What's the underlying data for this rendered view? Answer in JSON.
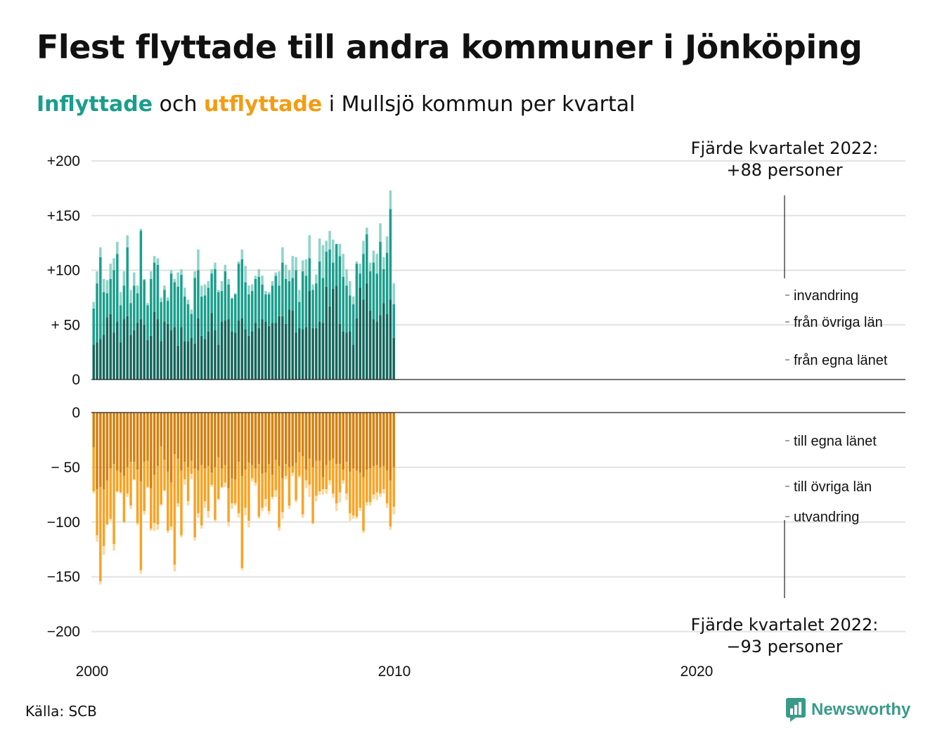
{
  "title": "Flest flyttade till andra kommuner i Jönköping",
  "subtitle": {
    "part1": "Inflyttade",
    "part2": " och ",
    "part3": "utflyttade",
    "part4": " i Mullsjö kommun per kvartal"
  },
  "source": "Källa: SCB",
  "brand": "Newsworthy",
  "colors": {
    "in_own": "#14665c",
    "in_other": "#1a9e8c",
    "in_immig": "#8fd3c9",
    "out_own": "#d4800f",
    "out_other": "#f8a324",
    "out_emig": "#fbd9a0",
    "grid": "#e2e2e2",
    "brand": "#3a9a8a"
  },
  "chart_data": {
    "type": "bar",
    "stacked": true,
    "x_start": "2000 K1",
    "x_ticks": [
      "2000",
      "2010",
      "2020"
    ],
    "top_panel": {
      "yticks": [
        "+200",
        "+150",
        "+100",
        "+ 50",
        "0"
      ],
      "ylim": [
        0,
        200
      ],
      "segment_labels": [
        "invandring",
        "från övriga län",
        "från egna länet"
      ],
      "annotation_line1": "Fjärde kvartalet 2022:",
      "annotation_line2": "+88 personer",
      "series": [
        {
          "name": "från egna länet",
          "values": [
            32,
            34,
            37,
            41,
            57,
            60,
            43,
            53,
            34,
            55,
            58,
            41,
            45,
            52,
            55,
            50,
            36,
            40,
            62,
            55,
            35,
            53,
            51,
            45,
            48,
            31,
            48,
            35,
            35,
            38,
            33,
            56,
            40,
            37,
            44,
            61,
            45,
            32,
            53,
            54,
            55,
            44,
            43,
            54,
            56,
            46,
            40,
            44,
            52,
            47,
            55,
            53,
            49,
            52,
            52,
            58,
            58,
            51,
            64,
            63,
            43,
            47,
            46,
            48,
            81,
            47,
            47,
            53,
            52,
            85,
            67,
            83,
            86,
            51,
            44,
            43,
            44,
            32,
            56,
            84,
            73,
            88,
            63,
            55,
            53,
            59,
            70,
            60,
            73,
            38
          ]
        },
        {
          "name": "från övriga län",
          "values": [
            33,
            54,
            75,
            39,
            22,
            32,
            57,
            62,
            34,
            31,
            63,
            29,
            41,
            27,
            81,
            41,
            32,
            52,
            45,
            50,
            36,
            29,
            21,
            52,
            41,
            54,
            48,
            41,
            34,
            22,
            60,
            44,
            36,
            40,
            40,
            36,
            56,
            48,
            28,
            45,
            32,
            30,
            35,
            52,
            54,
            43,
            38,
            37,
            40,
            47,
            32,
            25,
            29,
            34,
            43,
            28,
            49,
            41,
            26,
            30,
            57,
            24,
            53,
            47,
            30,
            35,
            41,
            55,
            41,
            32,
            52,
            24,
            38,
            62,
            50,
            43,
            33,
            37,
            50,
            13,
            42,
            45,
            36,
            52,
            44,
            67,
            31,
            56,
            83,
            31
          ]
        },
        {
          "name": "invandring",
          "values": [
            6,
            11,
            9,
            12,
            12,
            14,
            11,
            11,
            12,
            13,
            11,
            12,
            12,
            7,
            2,
            1,
            2,
            7,
            6,
            6,
            4,
            4,
            3,
            3,
            3,
            13,
            5,
            8,
            4,
            4,
            6,
            19,
            10,
            10,
            6,
            4,
            6,
            2,
            9,
            6,
            5,
            1,
            1,
            2,
            9,
            15,
            8,
            6,
            3,
            7,
            8,
            3,
            2,
            4,
            3,
            13,
            14,
            13,
            10,
            20,
            12,
            11,
            10,
            15,
            21,
            5,
            8,
            21,
            30,
            10,
            17,
            21,
            0,
            11,
            21,
            15,
            13,
            7,
            2,
            9,
            12,
            6,
            8,
            11,
            18,
            17,
            11,
            15,
            17,
            19
          ]
        }
      ]
    },
    "bottom_panel": {
      "yticks": [
        "0",
        "− 50",
        "−100",
        "−150",
        "−200"
      ],
      "ylim": [
        -200,
        0
      ],
      "segment_labels": [
        "till egna länet",
        "till övriga län",
        "utvandring"
      ],
      "annotation_line1": "Fjärde kvartalet 2022:",
      "annotation_line2": "−93 personer",
      "series": [
        {
          "name": "till egna länet",
          "values": [
            -32,
            -70,
            -68,
            -70,
            -62,
            -51,
            -47,
            -53,
            -55,
            -58,
            -50,
            -45,
            -45,
            -52,
            -63,
            -45,
            -44,
            -69,
            -57,
            -49,
            -31,
            -43,
            -54,
            -64,
            -38,
            -42,
            -53,
            -45,
            -50,
            -44,
            -51,
            -53,
            -48,
            -51,
            -49,
            -55,
            -50,
            -41,
            -51,
            -48,
            -69,
            -60,
            -61,
            -45,
            -58,
            -52,
            -46,
            -48,
            -51,
            -47,
            -56,
            -55,
            -47,
            -57,
            -43,
            -49,
            -60,
            -47,
            -50,
            -49,
            -46,
            -36,
            -40,
            -52,
            -42,
            -50,
            -44,
            -44,
            -59,
            -48,
            -44,
            -42,
            -47,
            -47,
            -52,
            -45,
            -54,
            -51,
            -53,
            -55,
            -59,
            -52,
            -51,
            -49,
            -48,
            -50,
            -49,
            -53,
            -62,
            -50
          ]
        },
        {
          "name": "till övriga län",
          "values": [
            -40,
            -42,
            -86,
            -52,
            -40,
            -46,
            -73,
            -19,
            -18,
            -42,
            -24,
            -40,
            -16,
            -49,
            -81,
            -45,
            -24,
            -37,
            -44,
            -53,
            -53,
            -28,
            -54,
            -40,
            -101,
            -41,
            -59,
            -16,
            -31,
            -12,
            -63,
            -39,
            -55,
            -30,
            -41,
            -11,
            -48,
            -38,
            -17,
            -16,
            -31,
            -23,
            -22,
            -47,
            -84,
            -35,
            -53,
            -12,
            -13,
            -48,
            -31,
            -24,
            -43,
            -20,
            -28,
            -56,
            -31,
            -11,
            -35,
            -6,
            -34,
            -22,
            -53,
            -10,
            -24,
            -51,
            -32,
            -28,
            -11,
            -22,
            -18,
            -32,
            -36,
            -26,
            -10,
            -29,
            -38,
            -43,
            -42,
            -32,
            -49,
            -30,
            -31,
            -26,
            -25,
            -24,
            -21,
            -30,
            -42,
            -36
          ]
        },
        {
          "name": "utvandring",
          "values": [
            -2,
            -6,
            -3,
            -8,
            -1,
            -2,
            -6,
            -1,
            -1,
            -1,
            -3,
            -3,
            -1,
            -2,
            -3,
            -3,
            -1,
            -2,
            -7,
            -5,
            -1,
            -1,
            -2,
            -3,
            -6,
            -3,
            -2,
            -5,
            -4,
            -5,
            -3,
            -4,
            -3,
            -6,
            -6,
            -2,
            -2,
            -1,
            -1,
            -4,
            -4,
            -5,
            -2,
            -4,
            -2,
            -7,
            -6,
            -3,
            -3,
            -2,
            -3,
            -7,
            -3,
            -2,
            -6,
            -3,
            -6,
            -3,
            -3,
            -3,
            -2,
            -2,
            -3,
            -7,
            -11,
            -1,
            -5,
            -3,
            -5,
            -4,
            -4,
            -4,
            -7,
            -9,
            -3,
            -6,
            -7,
            -3,
            -2,
            -3,
            -2,
            -3,
            -3,
            -4,
            -7,
            -3,
            -4,
            -4,
            -3,
            -7
          ]
        }
      ]
    }
  }
}
